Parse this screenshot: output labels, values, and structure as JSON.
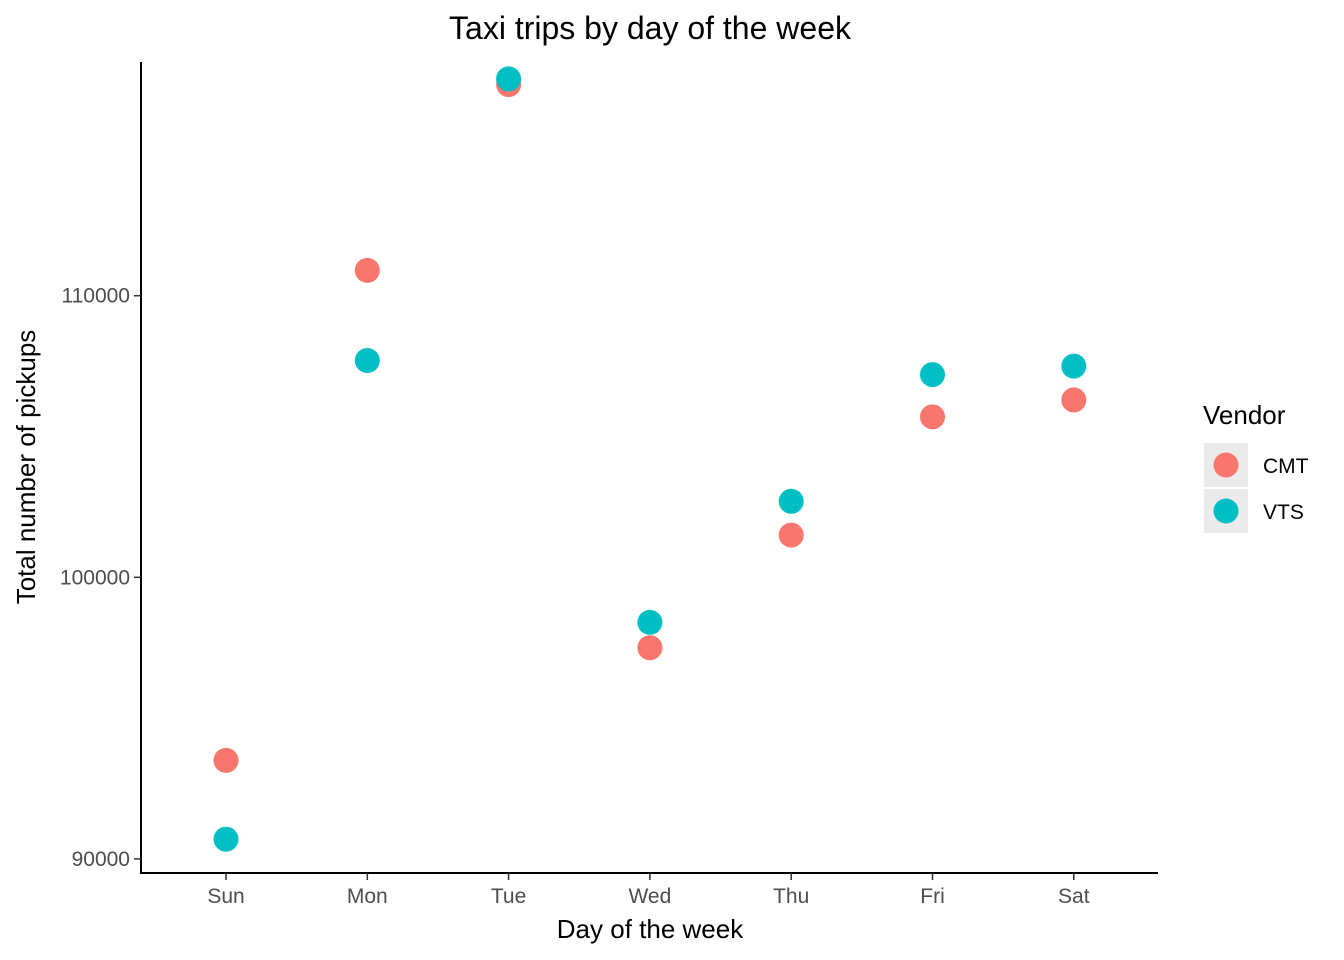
{
  "chart_data": {
    "type": "scatter",
    "title": "Taxi trips by day of the week",
    "xlabel": "Day of the week",
    "ylabel": "Total number of pickups",
    "categories": [
      "Sun",
      "Mon",
      "Tue",
      "Wed",
      "Thu",
      "Fri",
      "Sat"
    ],
    "ylim": [
      89500,
      118300
    ],
    "yticks": [
      90000,
      100000,
      110000
    ],
    "grid": false,
    "legend": {
      "title": "Vendor",
      "position": "right"
    },
    "series": [
      {
        "name": "CMT",
        "color": "#F8766D",
        "values": [
          93500,
          110900,
          117500,
          97500,
          101500,
          105700,
          106300
        ]
      },
      {
        "name": "VTS",
        "color": "#00BFC4",
        "values": [
          90700,
          107700,
          117700,
          98400,
          102700,
          107200,
          107500
        ]
      }
    ]
  }
}
